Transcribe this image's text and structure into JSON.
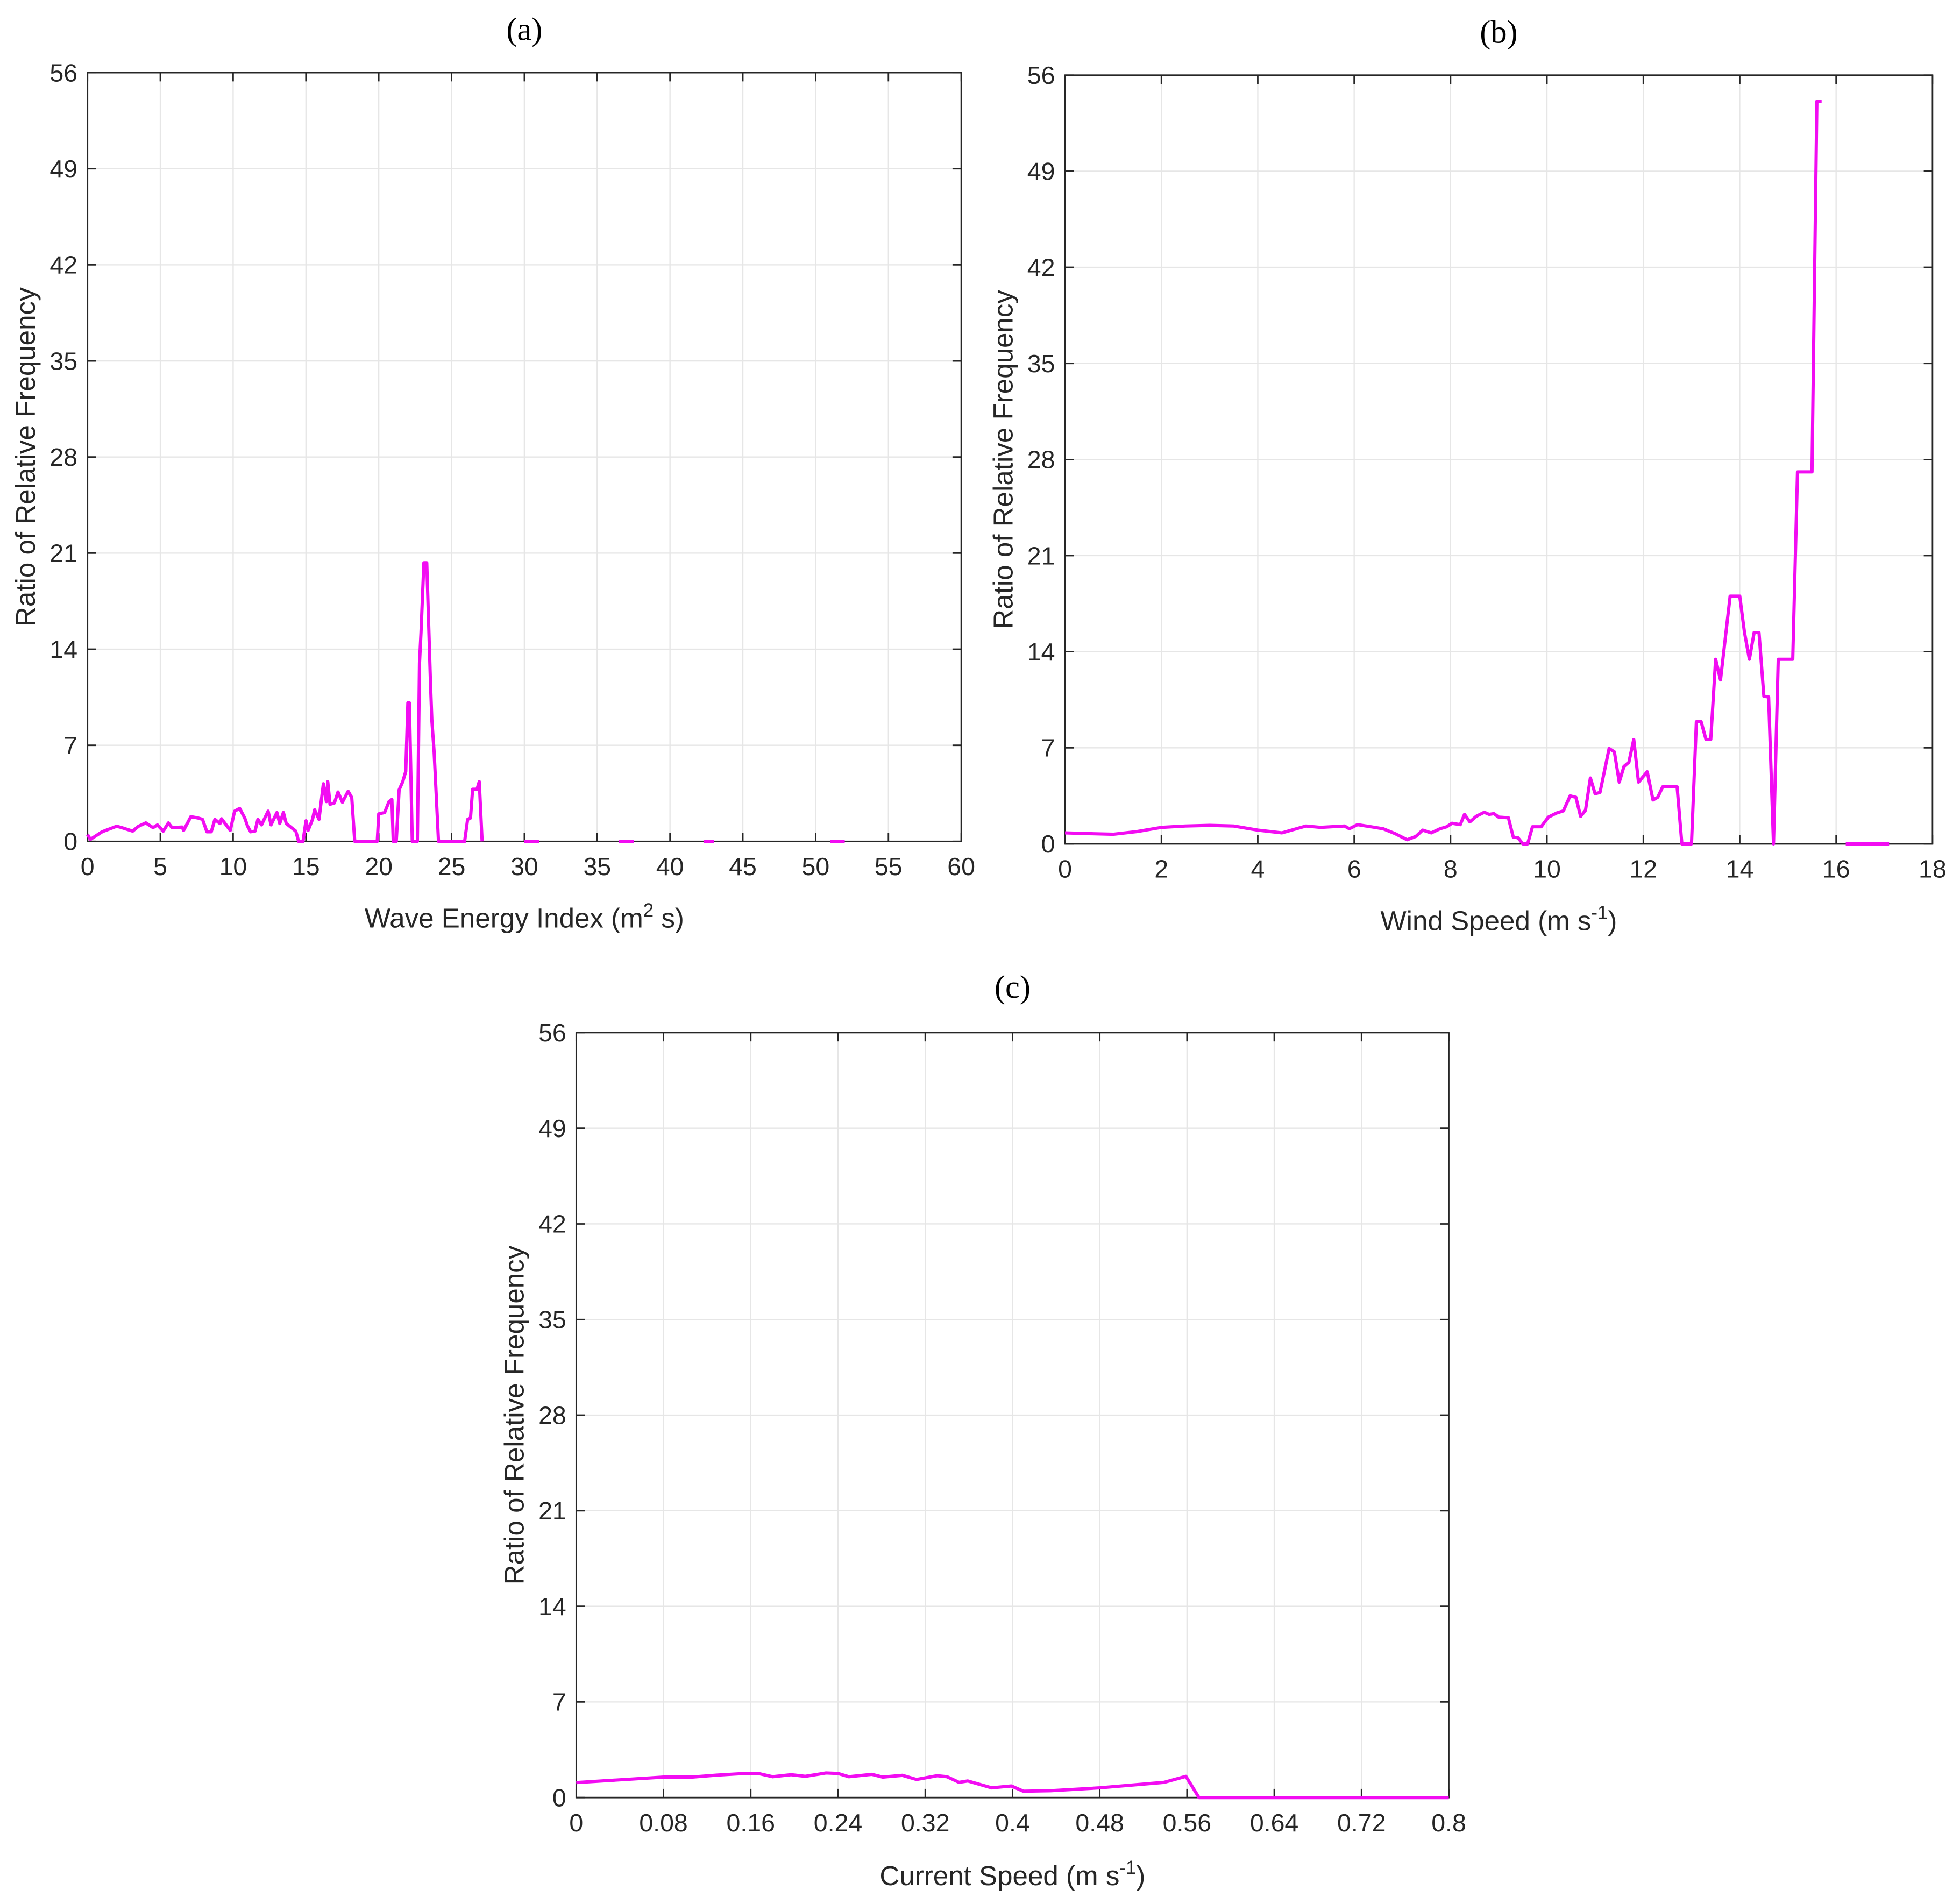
{
  "line_color": "#f20cf2",
  "chart_data": [
    {
      "type": "line",
      "title": "(a)",
      "xlabel": {
        "pre": "Wave Energy Index (m",
        "sup": "2",
        "post": " s)"
      },
      "ylabel": "Ratio of Relative Frequency",
      "xlim": [
        0,
        60
      ],
      "ylim": [
        0,
        56
      ],
      "xticks": [
        0,
        5,
        10,
        15,
        20,
        25,
        30,
        35,
        40,
        45,
        50,
        55,
        60
      ],
      "xtick_labels": [
        "0",
        "5",
        "10",
        "15",
        "20",
        "25",
        "30",
        "35",
        "40",
        "45",
        "50",
        "55",
        "60"
      ],
      "yticks": [
        0,
        7,
        14,
        21,
        28,
        35,
        42,
        49,
        56
      ],
      "grid": true,
      "segments": [
        [
          [
            0,
            0.5
          ],
          [
            0.2,
            0.15
          ],
          [
            1.0,
            0.7
          ],
          [
            2.0,
            1.1
          ],
          [
            2.35,
            1.0
          ],
          [
            3.1,
            0.75
          ],
          [
            3.5,
            1.1
          ],
          [
            4.0,
            1.35
          ],
          [
            4.5,
            1.0
          ],
          [
            4.8,
            1.2
          ],
          [
            5.2,
            0.75
          ],
          [
            5.55,
            1.35
          ],
          [
            5.8,
            1.0
          ],
          [
            6.5,
            1.05
          ],
          [
            6.6,
            0.8
          ],
          [
            7.1,
            1.8
          ],
          [
            7.6,
            1.7
          ],
          [
            7.9,
            1.6
          ],
          [
            8.2,
            0.7
          ],
          [
            8.5,
            0.7
          ],
          [
            8.75,
            1.6
          ],
          [
            9.1,
            1.3
          ],
          [
            9.2,
            1.65
          ],
          [
            9.8,
            0.8
          ],
          [
            10.1,
            2.2
          ],
          [
            10.45,
            2.4
          ],
          [
            10.8,
            1.7
          ],
          [
            11.0,
            1.1
          ],
          [
            11.2,
            0.7
          ],
          [
            11.5,
            0.75
          ],
          [
            11.7,
            1.6
          ],
          [
            11.95,
            1.2
          ],
          [
            12.4,
            2.2
          ],
          [
            12.6,
            1.2
          ],
          [
            13.0,
            2.1
          ],
          [
            13.2,
            1.3
          ],
          [
            13.45,
            2.1
          ],
          [
            13.65,
            1.3
          ],
          [
            14.0,
            1.0
          ],
          [
            14.3,
            0.75
          ],
          [
            14.5,
            0
          ],
          [
            14.8,
            0
          ],
          [
            15.0,
            1.5
          ],
          [
            15.15,
            0.8
          ],
          [
            15.45,
            1.6
          ],
          [
            15.6,
            2.3
          ],
          [
            15.9,
            1.6
          ],
          [
            16.2,
            4.2
          ],
          [
            16.4,
            2.9
          ],
          [
            16.5,
            4.35
          ],
          [
            16.65,
            2.7
          ],
          [
            16.95,
            2.8
          ],
          [
            17.2,
            3.6
          ],
          [
            17.5,
            2.85
          ],
          [
            17.9,
            3.65
          ],
          [
            18.15,
            3.2
          ],
          [
            18.35,
            0
          ],
          [
            19.9,
            0
          ],
          [
            20.0,
            2.0
          ],
          [
            20.4,
            2.1
          ],
          [
            20.7,
            2.9
          ],
          [
            20.9,
            3.05
          ],
          [
            21.0,
            0
          ],
          [
            21.2,
            0
          ],
          [
            21.4,
            3.75
          ],
          [
            21.65,
            4.35
          ],
          [
            21.85,
            5.1
          ],
          [
            22.0,
            10.1
          ],
          [
            22.1,
            10.1
          ],
          [
            22.3,
            0
          ],
          [
            22.65,
            0
          ],
          [
            22.8,
            13
          ],
          [
            22.9,
            15.2
          ],
          [
            23.1,
            20.3
          ],
          [
            23.3,
            20.3
          ],
          [
            23.55,
            11.5
          ],
          [
            23.65,
            8.8
          ],
          [
            23.8,
            6.5
          ],
          [
            24.1,
            0
          ],
          [
            25.9,
            0
          ],
          [
            26.1,
            1.6
          ],
          [
            26.3,
            1.7
          ],
          [
            26.45,
            3.8
          ],
          [
            26.75,
            3.8
          ],
          [
            26.9,
            4.35
          ],
          [
            27.1,
            0
          ]
        ],
        [
          [
            30.0,
            0
          ],
          [
            31.0,
            0
          ]
        ],
        [
          [
            36.5,
            0
          ],
          [
            37.5,
            0
          ]
        ],
        [
          [
            42.3,
            0
          ],
          [
            43.0,
            0
          ]
        ],
        [
          [
            51.0,
            0
          ],
          [
            52.0,
            0
          ]
        ]
      ]
    },
    {
      "type": "line",
      "title": "(b)",
      "xlabel": {
        "pre": "Wind Speed (m s",
        "sup": "-1",
        "post": ")"
      },
      "ylabel": "Ratio of Relative Frequency",
      "xlim": [
        0,
        18
      ],
      "ylim": [
        0,
        56
      ],
      "xticks": [
        0,
        2,
        4,
        6,
        8,
        10,
        12,
        14,
        16,
        18
      ],
      "xtick_labels": [
        "0",
        "2",
        "4",
        "6",
        "8",
        "10",
        "12",
        "14",
        "16",
        "18"
      ],
      "yticks": [
        0,
        7,
        14,
        21,
        28,
        35,
        42,
        49,
        56
      ],
      "grid": true,
      "segments": [
        [
          [
            0,
            0.8
          ],
          [
            0.5,
            0.75
          ],
          [
            1.0,
            0.7
          ],
          [
            1.5,
            0.9
          ],
          [
            2.0,
            1.2
          ],
          [
            2.5,
            1.3
          ],
          [
            3.0,
            1.35
          ],
          [
            3.5,
            1.3
          ],
          [
            4.0,
            1.0
          ],
          [
            4.5,
            0.8
          ],
          [
            5.0,
            1.3
          ],
          [
            5.3,
            1.2
          ],
          [
            5.8,
            1.3
          ],
          [
            5.9,
            1.1
          ],
          [
            6.07,
            1.4
          ],
          [
            6.43,
            1.2
          ],
          [
            6.6,
            1.1
          ],
          [
            6.85,
            0.75
          ],
          [
            7.1,
            0.3
          ],
          [
            7.28,
            0.55
          ],
          [
            7.42,
            1.0
          ],
          [
            7.6,
            0.8
          ],
          [
            7.78,
            1.1
          ],
          [
            7.92,
            1.25
          ],
          [
            8.03,
            1.5
          ],
          [
            8.2,
            1.4
          ],
          [
            8.29,
            2.15
          ],
          [
            8.4,
            1.6
          ],
          [
            8.53,
            2.0
          ],
          [
            8.7,
            2.3
          ],
          [
            8.8,
            2.15
          ],
          [
            8.9,
            2.2
          ],
          [
            9.0,
            1.95
          ],
          [
            9.2,
            1.9
          ],
          [
            9.3,
            0.5
          ],
          [
            9.4,
            0.45
          ],
          [
            9.5,
            0
          ],
          [
            9.6,
            0
          ],
          [
            9.7,
            1.25
          ],
          [
            9.88,
            1.25
          ],
          [
            10.03,
            1.95
          ],
          [
            10.2,
            2.25
          ],
          [
            10.34,
            2.4
          ],
          [
            10.48,
            3.5
          ],
          [
            10.6,
            3.4
          ],
          [
            10.7,
            2.0
          ],
          [
            10.8,
            2.45
          ],
          [
            10.9,
            4.8
          ],
          [
            11.0,
            3.65
          ],
          [
            11.1,
            3.75
          ],
          [
            11.29,
            6.95
          ],
          [
            11.4,
            6.7
          ],
          [
            11.5,
            4.5
          ],
          [
            11.6,
            5.65
          ],
          [
            11.7,
            5.95
          ],
          [
            11.8,
            7.6
          ],
          [
            11.9,
            4.5
          ],
          [
            12.08,
            5.25
          ],
          [
            12.2,
            3.2
          ],
          [
            12.3,
            3.4
          ],
          [
            12.4,
            4.15
          ],
          [
            12.7,
            4.15
          ],
          [
            12.8,
            0
          ],
          [
            13.0,
            0
          ],
          [
            13.1,
            8.9
          ],
          [
            13.2,
            8.9
          ],
          [
            13.3,
            7.6
          ],
          [
            13.4,
            7.6
          ],
          [
            13.5,
            13.45
          ],
          [
            13.6,
            11.95
          ],
          [
            13.8,
            18.05
          ],
          [
            14.0,
            18.05
          ],
          [
            14.1,
            15.4
          ],
          [
            14.2,
            13.45
          ],
          [
            14.3,
            15.4
          ],
          [
            14.4,
            15.4
          ],
          [
            14.5,
            10.75
          ],
          [
            14.6,
            10.7
          ],
          [
            14.7,
            0
          ],
          [
            14.8,
            13.45
          ],
          [
            15.1,
            13.45
          ],
          [
            15.2,
            27.1
          ],
          [
            15.5,
            27.1
          ],
          [
            15.6,
            54.1
          ],
          [
            15.7,
            54.1
          ]
        ],
        [
          [
            16.2,
            0
          ],
          [
            17.1,
            0
          ]
        ]
      ]
    },
    {
      "type": "line",
      "title": "(c)",
      "xlabel": {
        "pre": "Current Speed (m s",
        "sup": "-1",
        "post": ")"
      },
      "ylabel": "Ratio of Relative Frequency",
      "xlim": [
        0,
        0.8
      ],
      "ylim": [
        0,
        56
      ],
      "xticks": [
        0,
        0.08,
        0.16,
        0.24,
        0.32,
        0.4,
        0.48,
        0.56,
        0.64,
        0.72,
        0.8
      ],
      "xtick_labels": [
        "0",
        "0.08",
        "0.16",
        "0.24",
        "0.32",
        "0.4",
        "0.48",
        "0.56",
        "0.64",
        "0.72",
        "0.8"
      ],
      "yticks": [
        0,
        7,
        14,
        21,
        28,
        35,
        42,
        49,
        56
      ],
      "grid": true,
      "segments": [
        [
          [
            0,
            1.1
          ],
          [
            0.08,
            1.5
          ],
          [
            0.106,
            1.5
          ],
          [
            0.129,
            1.65
          ],
          [
            0.151,
            1.75
          ],
          [
            0.168,
            1.75
          ],
          [
            0.18,
            1.53
          ],
          [
            0.197,
            1.67
          ],
          [
            0.21,
            1.56
          ],
          [
            0.229,
            1.8
          ],
          [
            0.24,
            1.77
          ],
          [
            0.25,
            1.53
          ],
          [
            0.271,
            1.7
          ],
          [
            0.281,
            1.5
          ],
          [
            0.299,
            1.63
          ],
          [
            0.312,
            1.33
          ],
          [
            0.331,
            1.6
          ],
          [
            0.34,
            1.53
          ],
          [
            0.351,
            1.12
          ],
          [
            0.359,
            1.22
          ],
          [
            0.381,
            0.71
          ],
          [
            0.399,
            0.85
          ],
          [
            0.41,
            0.47
          ],
          [
            0.435,
            0.5
          ],
          [
            0.48,
            0.71
          ],
          [
            0.539,
            1.12
          ],
          [
            0.559,
            1.56
          ],
          [
            0.571,
            0
          ],
          [
            0.8,
            0
          ]
        ]
      ]
    }
  ]
}
